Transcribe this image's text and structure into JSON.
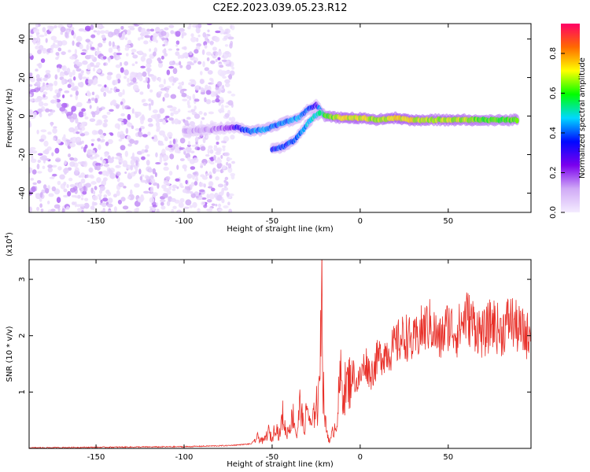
{
  "title": "C2E2.2023.039.05.23.R12",
  "chart_data": [
    {
      "type": "heatmap",
      "xlabel": "Height of straight line (km)",
      "ylabel": "Frequency (Hz)",
      "xlim": [
        -188,
        97
      ],
      "ylim": [
        -50,
        48
      ],
      "xticks": [
        -150,
        -100,
        -50,
        0,
        50
      ],
      "yticks": [
        -40,
        -20,
        0,
        20,
        40
      ],
      "grid": false,
      "colorbar": {
        "label": "Normalized spectral amplitude",
        "range": [
          0,
          0.95
        ],
        "ticks": [
          "0.0",
          "0.2",
          "0.4",
          "0.6",
          "0.8"
        ],
        "colors": [
          "#f4ecff",
          "#d0aaf6",
          "#7b00ee",
          "#0008ff",
          "#00d8ff",
          "#00ff00",
          "#ffff00",
          "#ff6a00",
          "#ff0066"
        ]
      },
      "noise_region": {
        "x": [
          -188,
          -72
        ],
        "y": [
          -50,
          48
        ],
        "amplitude": [
          0.02,
          0.18
        ]
      },
      "trace": [
        {
          "x": -100,
          "freq": -8,
          "amp": 0.1
        },
        {
          "x": -85,
          "freq": -7,
          "amp": 0.12
        },
        {
          "x": -75,
          "freq": -6,
          "amp": 0.18
        },
        {
          "x": -70,
          "freq": -6,
          "amp": 0.3
        },
        {
          "x": -62,
          "freq": -8,
          "amp": 0.42
        },
        {
          "x": -55,
          "freq": -7,
          "amp": 0.45
        },
        {
          "x": -48,
          "freq": -5,
          "amp": 0.4
        },
        {
          "x": -42,
          "freq": -3,
          "amp": 0.42
        },
        {
          "x": -35,
          "freq": -1,
          "amp": 0.45
        },
        {
          "x": -30,
          "freq": 3,
          "amp": 0.4
        },
        {
          "x": -25,
          "freq": 6,
          "amp": 0.3
        },
        {
          "x": -20,
          "freq": 0,
          "amp": 0.6
        },
        {
          "x": -10,
          "freq": -1,
          "amp": 0.7
        },
        {
          "x": 0,
          "freq": -1,
          "amp": 0.7
        },
        {
          "x": 10,
          "freq": -2,
          "amp": 0.65
        },
        {
          "x": 20,
          "freq": -1,
          "amp": 0.72
        },
        {
          "x": 30,
          "freq": -2,
          "amp": 0.7
        },
        {
          "x": 40,
          "freq": -2,
          "amp": 0.65
        },
        {
          "x": 50,
          "freq": -2,
          "amp": 0.68
        },
        {
          "x": 60,
          "freq": -2,
          "amp": 0.66
        },
        {
          "x": 70,
          "freq": -2,
          "amp": 0.62
        },
        {
          "x": 80,
          "freq": -2,
          "amp": 0.6
        },
        {
          "x": 90,
          "freq": -2,
          "amp": 0.64
        }
      ],
      "branch": [
        {
          "x": -50,
          "freq": -17,
          "amp": 0.35
        },
        {
          "x": -44,
          "freq": -16,
          "amp": 0.38
        },
        {
          "x": -38,
          "freq": -13,
          "amp": 0.4
        },
        {
          "x": -34,
          "freq": -9,
          "amp": 0.42
        },
        {
          "x": -30,
          "freq": -4,
          "amp": 0.45
        },
        {
          "x": -26,
          "freq": 0,
          "amp": 0.48
        },
        {
          "x": -22,
          "freq": 2,
          "amp": 0.5
        }
      ]
    },
    {
      "type": "line",
      "xlabel": "Height of straight line (km)",
      "ylabel": "SNR (10 * v/v)",
      "y_multiplier": "(x10",
      "y_multiplier_exp": "4",
      "y_multiplier_close": ")",
      "xlim": [
        -188,
        97
      ],
      "ylim": [
        0,
        3.35
      ],
      "xticks": [
        -150,
        -100,
        -50,
        0,
        50
      ],
      "yticks": [
        1,
        2,
        3
      ],
      "grid": false,
      "color": "#e8312a",
      "series": [
        {
          "x": [
            -188,
            -150,
            -100,
            -75,
            -62,
            -58,
            -55,
            -52,
            -50,
            -48,
            -46,
            -44,
            -42,
            -40,
            -38,
            -36,
            -34,
            -32,
            -30,
            -28,
            -26,
            -25,
            -24,
            -23,
            -22.5,
            -22,
            -21.5,
            -21,
            -20,
            -19,
            -18,
            -17,
            -16,
            -15,
            -14,
            -13,
            -12,
            -11,
            -10,
            -8,
            -6,
            -4,
            -2,
            0,
            3,
            6,
            10,
            14,
            18,
            22,
            26,
            30,
            35,
            40,
            45,
            50,
            55,
            60,
            65,
            70,
            75,
            80,
            85,
            90,
            95,
            97
          ],
          "y": [
            0.01,
            0.02,
            0.03,
            0.05,
            0.08,
            0.2,
            0.12,
            0.3,
            0.15,
            0.45,
            0.2,
            0.6,
            0.25,
            0.4,
            0.6,
            0.2,
            0.85,
            0.3,
            0.75,
            0.35,
            0.6,
            1.0,
            0.5,
            1.6,
            2.4,
            3.3,
            2.1,
            1.1,
            0.5,
            0.3,
            0.2,
            0.12,
            0.25,
            0.35,
            0.4,
            0.55,
            1.0,
            1.25,
            1.0,
            1.1,
            1.2,
            1.35,
            1.15,
            1.25,
            1.55,
            1.3,
            1.6,
            1.7,
            1.75,
            1.9,
            2.0,
            1.85,
            2.1,
            2.2,
            1.9,
            2.2,
            2.05,
            2.35,
            2.2,
            2.0,
            2.25,
            2.05,
            2.3,
            2.1,
            2.0,
            2.2
          ]
        }
      ]
    }
  ]
}
